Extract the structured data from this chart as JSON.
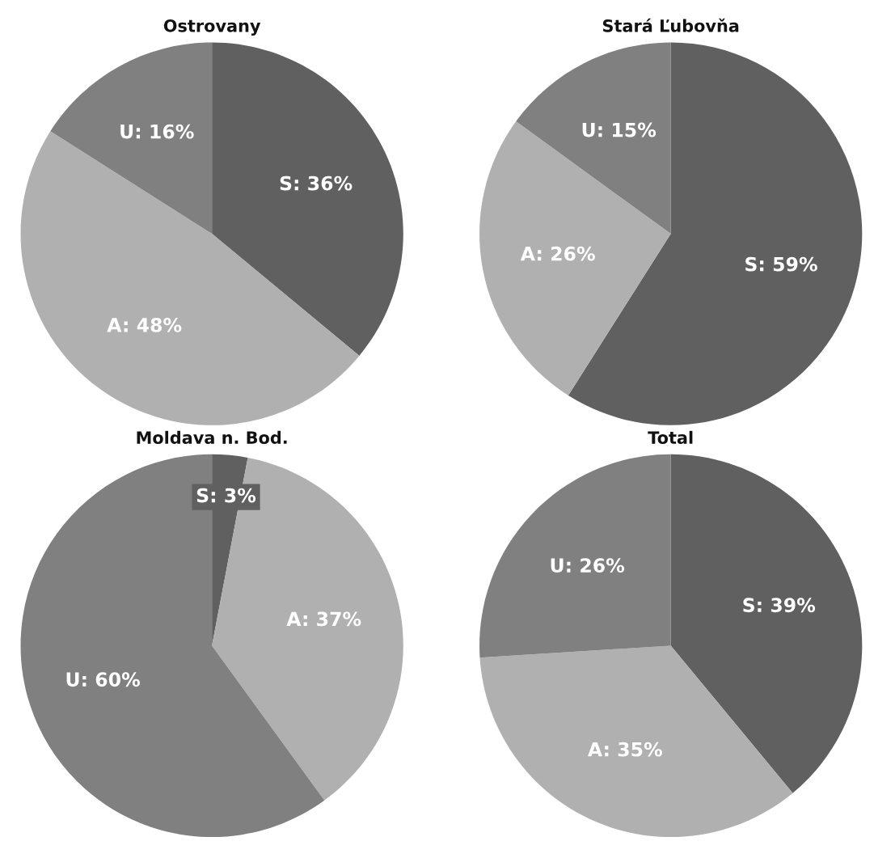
{
  "chart_data": [
    {
      "type": "pie",
      "title": "Ostrovany",
      "categories": [
        "S: 36%",
        "A: 48%",
        "U: 16%"
      ],
      "values": [
        36,
        48,
        16
      ],
      "colors": [
        "#606060",
        "#b0b0b0",
        "#808080"
      ]
    },
    {
      "type": "pie",
      "title": "Stará Ľubovňa",
      "categories": [
        "S: 59%",
        "A: 26%",
        "U: 15%"
      ],
      "values": [
        59,
        26,
        15
      ],
      "colors": [
        "#606060",
        "#b0b0b0",
        "#808080"
      ]
    },
    {
      "type": "pie",
      "title": "Moldava n. Bod.",
      "categories": [
        "S: 3%",
        "A: 37%",
        "U: 60%"
      ],
      "values": [
        3,
        37,
        60
      ],
      "colors": [
        "#606060",
        "#b0b0b0",
        "#808080"
      ]
    },
    {
      "type": "pie",
      "title": "Total",
      "categories": [
        "S: 39%",
        "A: 35%",
        "U: 26%"
      ],
      "values": [
        39,
        35,
        26
      ],
      "colors": [
        "#606060",
        "#b0b0b0",
        "#808080"
      ]
    }
  ]
}
